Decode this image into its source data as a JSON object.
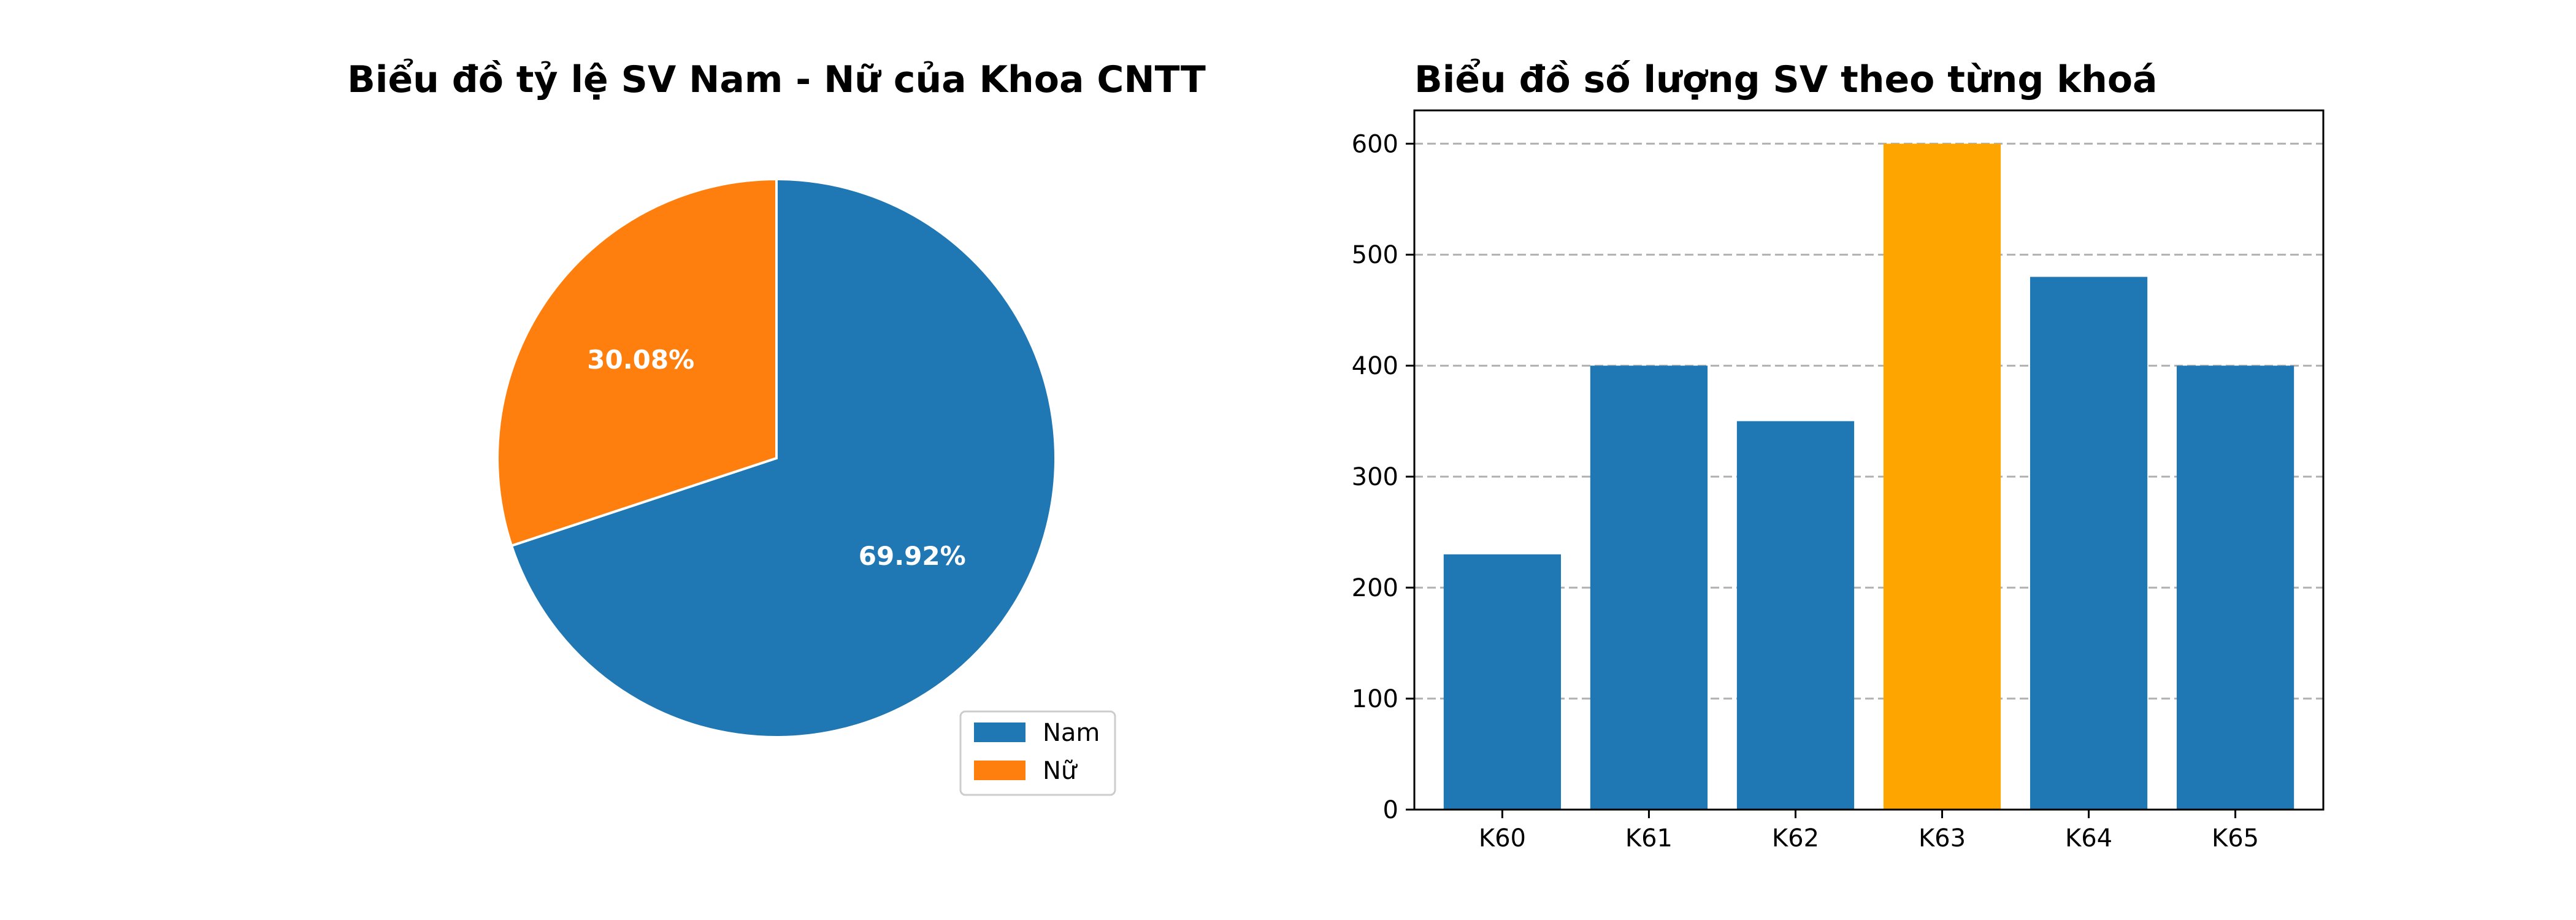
{
  "chart_data": [
    {
      "type": "pie",
      "title": "Biểu đồ tỷ lệ SV Nam - Nữ của Khoa CNTT",
      "labels": [
        "Nam",
        "Nữ"
      ],
      "values": [
        69.92,
        30.08
      ],
      "value_labels": [
        "69.92%",
        "30.08%"
      ],
      "colors": [
        "#1f77b4",
        "#ff7f0e"
      ],
      "start_angle_deg": 90,
      "direction": "clockwise",
      "legend": {
        "position": "bottom-right",
        "entries": [
          "Nam",
          "Nữ"
        ]
      }
    },
    {
      "type": "bar",
      "title": "Biểu đồ số lượng SV theo từng khoá",
      "categories": [
        "K60",
        "K61",
        "K62",
        "K63",
        "K64",
        "K65"
      ],
      "values": [
        230,
        400,
        350,
        600,
        480,
        400
      ],
      "colors": [
        "#1f77b4",
        "#1f77b4",
        "#1f77b4",
        "#ffa500",
        "#1f77b4",
        "#1f77b4"
      ],
      "xlabel": "",
      "ylabel": "",
      "ylim": [
        0,
        630
      ],
      "yticks": [
        0,
        100,
        200,
        300,
        400,
        500,
        600
      ],
      "grid": "y-dashed"
    }
  ]
}
